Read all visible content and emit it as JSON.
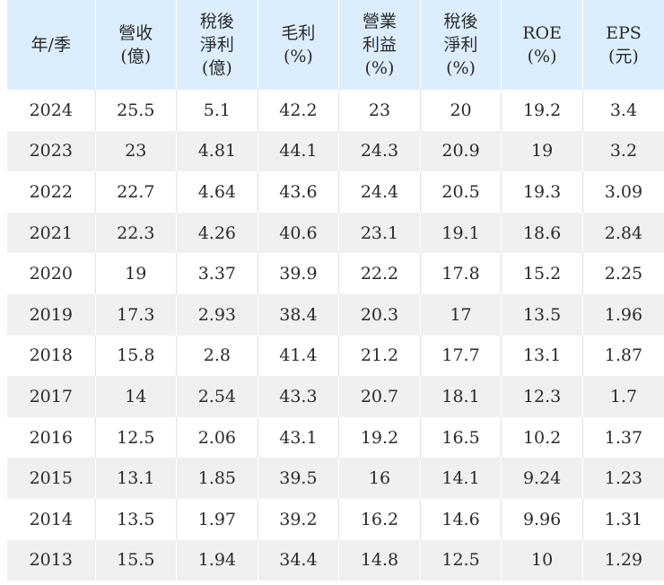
{
  "table": {
    "headers": [
      [
        "年/季"
      ],
      [
        "營收",
        "(億)"
      ],
      [
        "稅後",
        "淨利",
        "(億)"
      ],
      [
        "毛利",
        "(%)"
      ],
      [
        "營業",
        "利益",
        "(%)"
      ],
      [
        "稅後",
        "淨利",
        "(%)"
      ],
      [
        "ROE",
        "(%)"
      ],
      [
        "EPS",
        "(元)"
      ]
    ],
    "rows": [
      [
        "2024",
        "25.5",
        "5.1",
        "42.2",
        "23",
        "20",
        "19.2",
        "3.4"
      ],
      [
        "2023",
        "23",
        "4.81",
        "44.1",
        "24.3",
        "20.9",
        "19",
        "3.2"
      ],
      [
        "2022",
        "22.7",
        "4.64",
        "43.6",
        "24.4",
        "20.5",
        "19.3",
        "3.09"
      ],
      [
        "2021",
        "22.3",
        "4.26",
        "40.6",
        "23.1",
        "19.1",
        "18.6",
        "2.84"
      ],
      [
        "2020",
        "19",
        "3.37",
        "39.9",
        "22.2",
        "17.8",
        "15.2",
        "2.25"
      ],
      [
        "2019",
        "17.3",
        "2.93",
        "38.4",
        "20.3",
        "17",
        "13.5",
        "1.96"
      ],
      [
        "2018",
        "15.8",
        "2.8",
        "41.4",
        "21.2",
        "17.7",
        "13.1",
        "1.87"
      ],
      [
        "2017",
        "14",
        "2.54",
        "43.3",
        "20.7",
        "18.1",
        "12.3",
        "1.7"
      ],
      [
        "2016",
        "12.5",
        "2.06",
        "43.1",
        "19.2",
        "16.5",
        "10.2",
        "1.37"
      ],
      [
        "2015",
        "13.1",
        "1.85",
        "39.5",
        "16",
        "14.1",
        "9.24",
        "1.23"
      ],
      [
        "2014",
        "13.5",
        "1.97",
        "39.2",
        "16.2",
        "14.6",
        "9.96",
        "1.31"
      ],
      [
        "2013",
        "15.5",
        "1.94",
        "34.4",
        "14.8",
        "12.5",
        "10",
        "1.29"
      ]
    ]
  },
  "colors": {
    "header_bg": "#dceefe",
    "row_alt_bg": "#f0f0f0",
    "text": "#2a2a2a"
  }
}
